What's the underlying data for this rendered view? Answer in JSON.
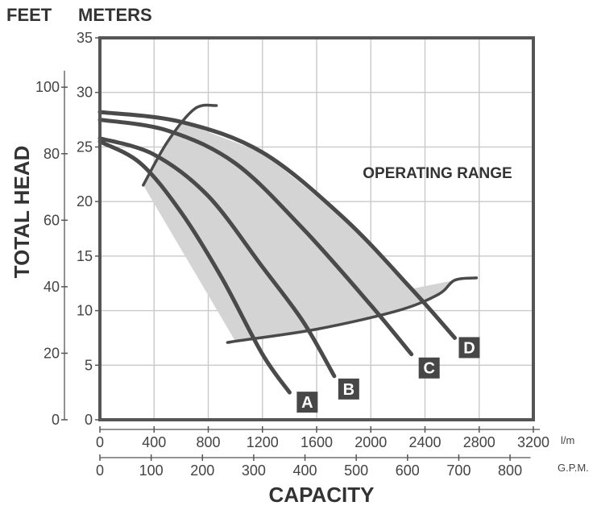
{
  "headings": {
    "feet": "FEET",
    "meters": "METERS",
    "y_axis": "TOTAL HEAD",
    "x_axis": "CAPACITY",
    "range_label": "OPERATING RANGE",
    "lpm_unit": "l/m",
    "gpm_unit": "G.P.M."
  },
  "chart_data": {
    "type": "line",
    "title": "",
    "xlabel": "CAPACITY",
    "ylabel": "TOTAL HEAD",
    "xlim": [
      0,
      3200
    ],
    "ylim": [
      0,
      35
    ],
    "x_unit": "l/m",
    "y_unit": "m",
    "grid": true,
    "x_ticks_lpm": [
      "0",
      "400",
      "800",
      "1200",
      "1600",
      "2000",
      "2400",
      "2800",
      "3200"
    ],
    "x_ticks_gpm": [
      "0",
      "100",
      "200",
      "300",
      "400",
      "500",
      "600",
      "700",
      "800"
    ],
    "y_ticks_m": [
      "0",
      "5",
      "10",
      "15",
      "20",
      "25",
      "30",
      "35"
    ],
    "y_ticks_ft": [
      "0",
      "20",
      "40",
      "60",
      "80",
      "100"
    ],
    "series": [
      {
        "name": "A",
        "x": [
          0,
          300,
          600,
          900,
          1200,
          1400
        ],
        "y": [
          25.5,
          23.5,
          19.0,
          13.0,
          6.0,
          2.5
        ]
      },
      {
        "name": "B",
        "x": [
          0,
          400,
          800,
          1200,
          1500,
          1730
        ],
        "y": [
          25.8,
          24.3,
          20.5,
          14.0,
          9.0,
          4.0
        ]
      },
      {
        "name": "C",
        "x": [
          0,
          500,
          1000,
          1500,
          2000,
          2300
        ],
        "y": [
          27.5,
          26.5,
          23.5,
          17.5,
          10.5,
          6.0
        ]
      },
      {
        "name": "D",
        "x": [
          0,
          600,
          1200,
          1800,
          2300,
          2620
        ],
        "y": [
          28.2,
          27.3,
          24.5,
          18.5,
          12.0,
          7.5
        ]
      }
    ],
    "operating_range_bounds": {
      "left": [
        {
          "x": 320,
          "y": 21.5
        },
        {
          "x": 500,
          "y": 25.5
        },
        {
          "x": 700,
          "y": 28.5
        }
      ],
      "bottom": [
        {
          "x": 1000,
          "y": 7.2
        },
        {
          "x": 1600,
          "y": 8.3
        },
        {
          "x": 2200,
          "y": 10.0
        },
        {
          "x": 2500,
          "y": 11.5
        },
        {
          "x": 2620,
          "y": 12.8
        }
      ]
    },
    "annotations": [
      "OPERATING RANGE"
    ]
  }
}
